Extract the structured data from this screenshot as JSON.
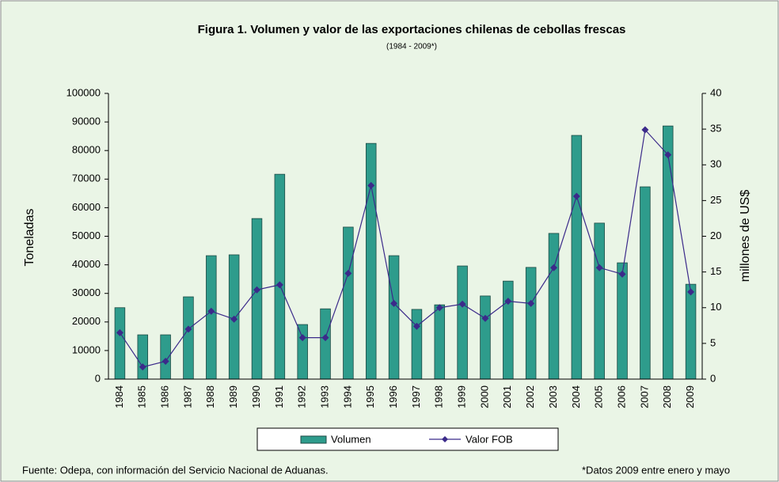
{
  "chart_data": {
    "type": "bar",
    "title": "Figura 1. Volumen y valor de las exportaciones chilenas de cebollas frescas",
    "subtitle": "(1984 - 2009*)",
    "ylabel": "Toneladas",
    "y2label": "millones de US$",
    "categories": [
      "1984",
      "1985",
      "1986",
      "1987",
      "1988",
      "1989",
      "1990",
      "1991",
      "1992",
      "1993",
      "1994",
      "1995",
      "1996",
      "1997",
      "1998",
      "1999",
      "2000",
      "2001",
      "2002",
      "2003",
      "2004",
      "2005",
      "2006",
      "2007",
      "2008",
      "2009"
    ],
    "series": [
      {
        "name": "Volumen",
        "type": "bar",
        "color": "#2e9c8c",
        "values": [
          25000,
          15500,
          15500,
          28800,
          43200,
          43500,
          56200,
          71700,
          19100,
          24600,
          53200,
          82500,
          43200,
          24400,
          26000,
          39600,
          29100,
          34300,
          39100,
          51000,
          85300,
          54600,
          40700,
          67300,
          88600,
          33200
        ]
      },
      {
        "name": "Valor FOB",
        "type": "line",
        "axis": "y2",
        "color": "#3b2a8a",
        "values": [
          6.5,
          1.7,
          2.5,
          7.0,
          9.5,
          8.4,
          12.5,
          13.2,
          5.8,
          5.8,
          14.8,
          27.1,
          10.6,
          7.4,
          10.0,
          10.5,
          8.5,
          10.9,
          10.6,
          15.6,
          25.6,
          15.6,
          14.7,
          34.9,
          31.4,
          12.2
        ]
      }
    ],
    "ylim": [
      0,
      100000
    ],
    "yticks": [
      0,
      10000,
      20000,
      30000,
      40000,
      50000,
      60000,
      70000,
      80000,
      90000,
      100000
    ],
    "y2lim": [
      0,
      40
    ],
    "y2ticks": [
      0,
      5,
      10,
      15,
      20,
      25,
      30,
      35,
      40
    ],
    "grid": false,
    "legend": "bottom",
    "source": "Fuente: Odepa, con información del Servicio Nacional de Aduanas.",
    "note": "*Datos 2009 entre enero y mayo"
  }
}
